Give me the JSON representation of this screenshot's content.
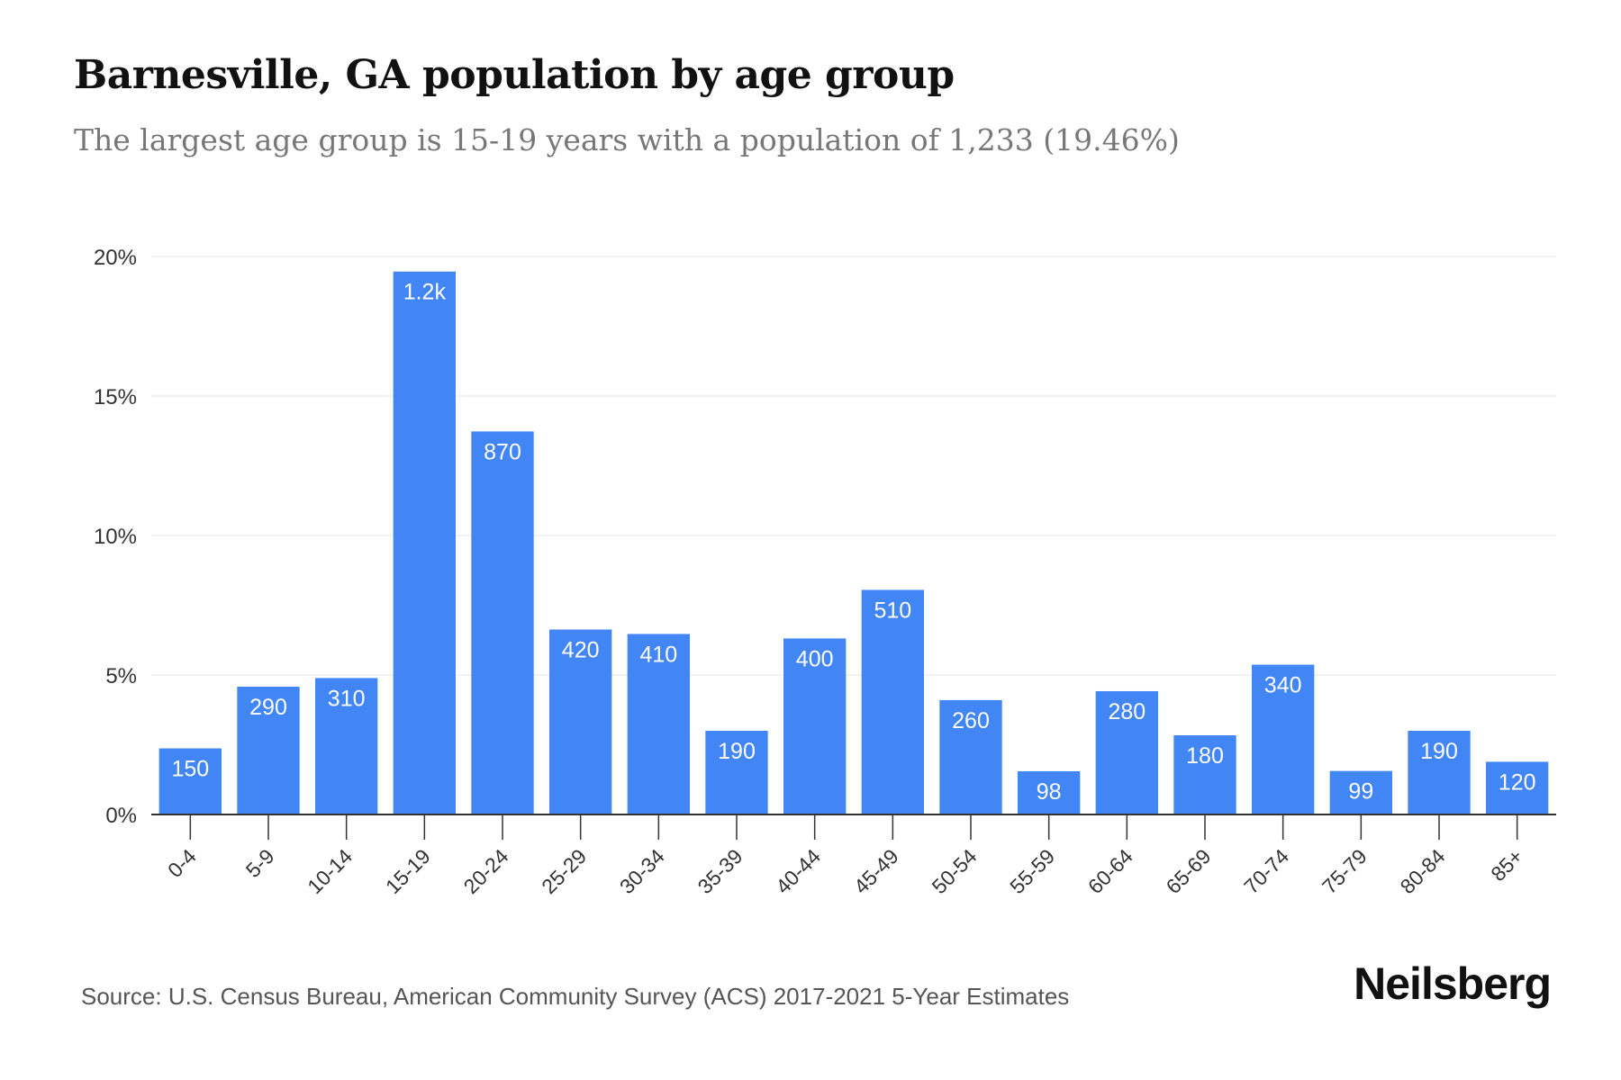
{
  "header": {
    "title": "Barnesville, GA population by age group",
    "subtitle": "The largest age group is 15-19 years with a population of 1,233 (19.46%)"
  },
  "footer": {
    "source": "Source: U.S. Census Bureau, American Community Survey (ACS) 2017-2021 5-Year Estimates",
    "brand": "Neilsberg"
  },
  "colors": {
    "bar": "#4285f4",
    "grid": "#eeeeee",
    "axis": "#333333",
    "label_inside": "#ffffff",
    "tick_text": "#333333"
  },
  "chart_data": {
    "type": "bar",
    "title": "Barnesville, GA population by age group",
    "subtitle": "The largest age group is 15-19 years with a population of 1,233 (19.46%)",
    "xlabel": "",
    "ylabel": "",
    "categories": [
      "0-4",
      "5-9",
      "10-14",
      "15-19",
      "20-24",
      "25-29",
      "30-34",
      "35-39",
      "40-44",
      "45-49",
      "50-54",
      "55-59",
      "60-64",
      "65-69",
      "70-74",
      "75-79",
      "80-84",
      "85+"
    ],
    "values": [
      2.37,
      4.58,
      4.89,
      19.46,
      13.73,
      6.63,
      6.47,
      3.0,
      6.31,
      8.05,
      4.1,
      1.55,
      4.42,
      2.84,
      5.37,
      1.56,
      3.0,
      1.89
    ],
    "data_labels": [
      "150",
      "290",
      "310",
      "1.2k",
      "870",
      "420",
      "410",
      "190",
      "400",
      "510",
      "260",
      "98",
      "280",
      "180",
      "340",
      "99",
      "190",
      "120"
    ],
    "y_ticks": [
      0,
      5,
      10,
      15,
      20
    ],
    "y_tick_labels": [
      "0%",
      "5%",
      "10%",
      "15%",
      "20%"
    ],
    "ylim": [
      0,
      20
    ],
    "grid": true,
    "legend": "none"
  }
}
